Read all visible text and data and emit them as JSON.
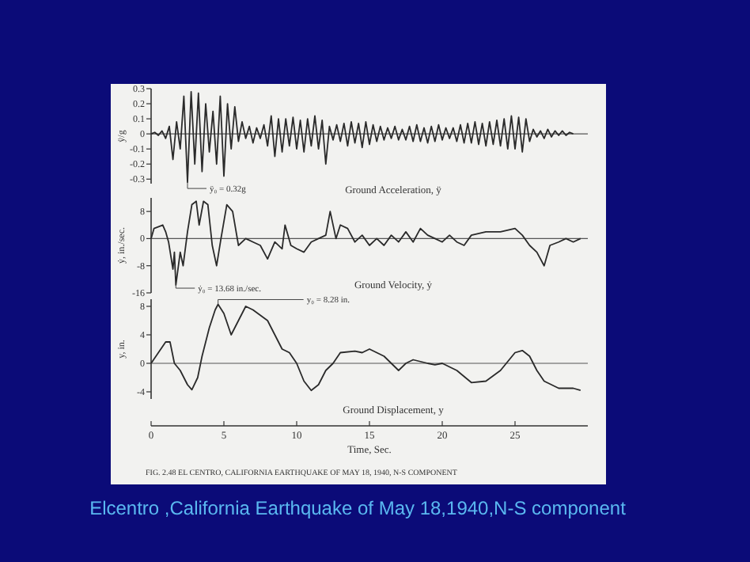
{
  "chart_data": [
    {
      "type": "line",
      "title": "Ground Acceleration, ÿ",
      "ylabel": "ÿ/g",
      "xlim": [
        0,
        30
      ],
      "ylim": [
        -0.33,
        0.3
      ],
      "yticks": [
        0.3,
        0.2,
        0.1,
        0,
        -0.1,
        -0.2,
        -0.3
      ],
      "tick_labels": "y",
      "grid": false,
      "marker": "none",
      "line_style": "solid",
      "ref_lines": [
        {
          "axis": "y",
          "value": 0
        }
      ],
      "annotations": [
        {
          "text": "ÿ₀ = 0.32g",
          "x": 2.5,
          "y": -0.32
        }
      ],
      "series": [
        {
          "color": "#2a2a2a",
          "x": [
            0,
            0.25,
            0.5,
            0.75,
            1,
            1.25,
            1.5,
            1.75,
            2,
            2.25,
            2.5,
            2.75,
            3,
            3.25,
            3.5,
            3.75,
            4,
            4.25,
            4.5,
            4.75,
            5,
            5.25,
            5.5,
            5.75,
            6,
            6.25,
            6.5,
            6.75,
            7,
            7.25,
            7.5,
            7.75,
            8,
            8.25,
            8.5,
            8.75,
            9,
            9.25,
            9.5,
            9.75,
            10,
            10.25,
            10.5,
            10.75,
            11,
            11.25,
            11.5,
            11.75,
            12,
            12.25,
            12.5,
            12.75,
            13,
            13.25,
            13.5,
            13.75,
            14,
            14.25,
            14.5,
            14.75,
            15,
            15.25,
            15.5,
            15.75,
            16,
            16.25,
            16.5,
            16.75,
            17,
            17.25,
            17.5,
            17.75,
            18,
            18.25,
            18.5,
            18.75,
            19,
            19.25,
            19.5,
            19.75,
            20,
            20.25,
            20.5,
            20.75,
            21,
            21.25,
            21.5,
            21.75,
            22,
            22.25,
            22.5,
            22.75,
            23,
            23.25,
            23.5,
            23.75,
            24,
            24.25,
            24.5,
            24.75,
            25,
            25.25,
            25.5,
            25.75,
            26,
            26.25,
            26.5,
            26.75,
            27,
            27.25,
            27.5,
            27.75,
            28,
            28.25,
            28.5,
            28.75,
            29
          ],
          "values": [
            0,
            0.01,
            -0.01,
            0.02,
            -0.03,
            0.05,
            -0.17,
            0.08,
            -0.1,
            0.25,
            -0.32,
            0.28,
            -0.2,
            0.27,
            -0.25,
            0.2,
            -0.12,
            0.15,
            -0.2,
            0.25,
            -0.28,
            0.2,
            -0.1,
            0.18,
            -0.05,
            0.08,
            -0.03,
            0.05,
            -0.06,
            0.04,
            -0.03,
            0.06,
            -0.08,
            0.12,
            -0.15,
            0.1,
            -0.12,
            0.1,
            -0.08,
            0.11,
            -0.1,
            0.09,
            -0.12,
            0.1,
            -0.08,
            0.12,
            -0.1,
            0.09,
            -0.2,
            0.05,
            -0.04,
            0.06,
            -0.05,
            0.07,
            -0.08,
            0.08,
            -0.06,
            0.07,
            -0.09,
            0.08,
            -0.07,
            0.06,
            -0.05,
            0.05,
            -0.04,
            0.04,
            -0.03,
            0.05,
            -0.04,
            0.03,
            -0.04,
            0.05,
            -0.05,
            0.06,
            -0.05,
            0.04,
            -0.06,
            0.05,
            -0.05,
            0.06,
            -0.04,
            0.04,
            -0.03,
            0.04,
            -0.05,
            0.06,
            -0.06,
            0.07,
            -0.06,
            0.08,
            -0.07,
            0.07,
            -0.08,
            0.08,
            -0.07,
            0.09,
            -0.08,
            0.1,
            -0.1,
            0.12,
            -0.1,
            0.11,
            -0.12,
            0.1,
            -0.05,
            0.03,
            -0.02,
            0.02,
            -0.03,
            0.03,
            -0.02,
            0.02,
            -0.01,
            0.02,
            -0.01,
            0.01,
            0
          ]
        }
      ]
    },
    {
      "type": "line",
      "title": "Ground Velocity, ẏ",
      "ylabel": "ẏ, in./sec.",
      "xlim": [
        0,
        30
      ],
      "ylim": [
        -16,
        12
      ],
      "yticks": [
        8,
        0,
        -8,
        -16
      ],
      "tick_labels": "y",
      "grid": false,
      "marker": "none",
      "line_style": "solid",
      "ref_lines": [
        {
          "axis": "y",
          "value": 0
        }
      ],
      "annotations": [
        {
          "text": "ẏ₀ = 13.68 in./sec.",
          "x": 1.7,
          "y": -13.68
        }
      ],
      "series": [
        {
          "color": "#2a2a2a",
          "x": [
            0,
            0.2,
            0.8,
            1,
            1.2,
            1.5,
            1.6,
            1.7,
            2,
            2.2,
            2.5,
            2.8,
            3.1,
            3.3,
            3.6,
            3.9,
            4.2,
            4.5,
            4.8,
            5.2,
            5.6,
            6,
            6.5,
            7,
            7.5,
            8,
            8.5,
            9,
            9.2,
            9.6,
            10,
            10.5,
            11,
            11.5,
            12,
            12.3,
            12.7,
            13,
            13.5,
            14,
            14.5,
            15,
            15.5,
            16,
            16.5,
            17,
            17.5,
            18,
            18.5,
            19,
            19.5,
            20,
            20.5,
            21,
            21.5,
            22,
            23,
            24,
            25,
            25.5,
            26,
            26.5,
            27,
            27.4,
            28,
            28.5,
            29,
            29.5
          ],
          "values": [
            0,
            3,
            4,
            2,
            -1,
            -9,
            -4,
            -13.68,
            -4,
            -8,
            2,
            10,
            11,
            4,
            11,
            10,
            -2,
            -8,
            0,
            10,
            8,
            -2,
            0,
            -1,
            -2,
            -6,
            -1,
            -3,
            4,
            -2,
            -3,
            -4,
            -1,
            0,
            1,
            8,
            0,
            4,
            3,
            -1,
            1,
            -2,
            0,
            -2,
            1,
            -1,
            2,
            -1,
            3,
            1,
            0,
            -1,
            1,
            -1,
            -2,
            1,
            2,
            2,
            3,
            1,
            -2,
            -4,
            -8,
            -2,
            -1,
            0,
            -1,
            0
          ]
        }
      ]
    },
    {
      "type": "line",
      "title": "Ground Displacement, y",
      "xlabel": "Time, Sec.",
      "ylabel": "y, in.",
      "xlim": [
        0,
        30
      ],
      "xticks": [
        0,
        5,
        10,
        15,
        20,
        25
      ],
      "ylim": [
        -5,
        9
      ],
      "yticks": [
        8,
        4,
        0,
        -4
      ],
      "grid": false,
      "marker": "none",
      "line_style": "solid",
      "ref_lines": [
        {
          "axis": "y",
          "value": 0
        }
      ],
      "annotations": [
        {
          "text": "y₀ = 8.28 in.",
          "x": 4.6,
          "y": 8.28
        },
        "FIG. 2.48 EL CENTRO, CALIFORNIA EARTHQUAKE OF MAY 18, 1940, N-S COMPONENT",
        "Elcentro ,California Earthquake of May 18,1940,N-S component"
      ],
      "series": [
        {
          "color": "#2a2a2a",
          "x": [
            0,
            0.5,
            1,
            1.3,
            1.6,
            2,
            2.5,
            2.8,
            3.2,
            3.5,
            4,
            4.4,
            4.6,
            5,
            5.5,
            6,
            6.5,
            7,
            8,
            8.5,
            9,
            9.5,
            10,
            10.5,
            11,
            11.5,
            12,
            12.5,
            13,
            14,
            14.5,
            15,
            15.5,
            16,
            16.5,
            17,
            17.5,
            18,
            19,
            19.5,
            20,
            21,
            22,
            23,
            24,
            25,
            25.5,
            26,
            26.5,
            27,
            28,
            29,
            29.5
          ],
          "values": [
            0,
            1.5,
            3,
            3,
            0,
            -1,
            -3,
            -3.7,
            -2,
            1,
            5,
            7.5,
            8.28,
            7,
            4,
            6,
            8,
            7.5,
            6,
            4,
            2,
            1.5,
            0,
            -2.5,
            -3.8,
            -3,
            -1,
            0,
            1.5,
            1.7,
            1.5,
            2,
            1.5,
            1,
            0,
            -1,
            0,
            0.5,
            0,
            -0.2,
            0,
            -1,
            -2.7,
            -2.5,
            -1,
            1.5,
            1.8,
            1,
            -1,
            -2.5,
            -3.5,
            -3.5,
            -3.8
          ]
        }
      ]
    }
  ]
}
